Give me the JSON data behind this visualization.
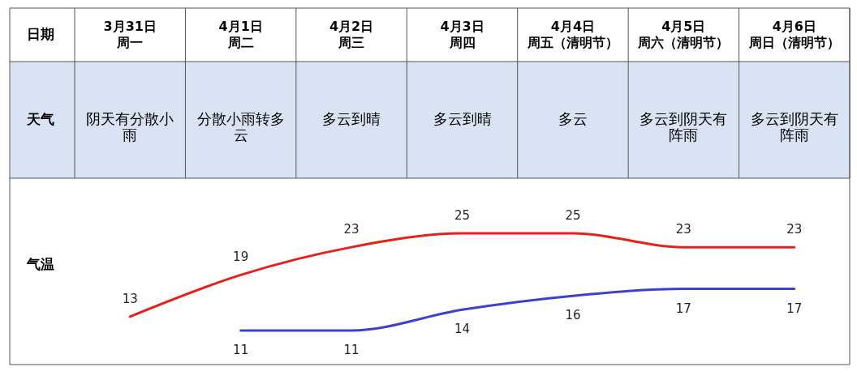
{
  "chart_data": {
    "type": "line",
    "xlabel": "日期",
    "ylabel": "气温",
    "categories": [
      "3月31日",
      "4月1日",
      "4月2日",
      "4月3日",
      "4月4日",
      "4月5日",
      "4月6日"
    ],
    "series": [
      {
        "color": "#e8201c",
        "values": [
          13,
          19,
          23,
          25,
          25,
          23,
          23
        ]
      },
      {
        "color": "#4040d0",
        "values": [
          null,
          11,
          11,
          14,
          16,
          17,
          17
        ]
      }
    ],
    "annotations": [
      "天气",
      "阴天有分散小雨",
      "分散小雨转多云",
      "多云到晴",
      "多云到晴",
      "多云",
      "多云到阴天有阵雨",
      "多云到阴天有阵雨",
      "周一",
      "周二",
      "周三",
      "周四",
      "周五（清明节）",
      "周六（清明节）",
      "周日（清明节）"
    ],
    "data_labels": true
  }
}
